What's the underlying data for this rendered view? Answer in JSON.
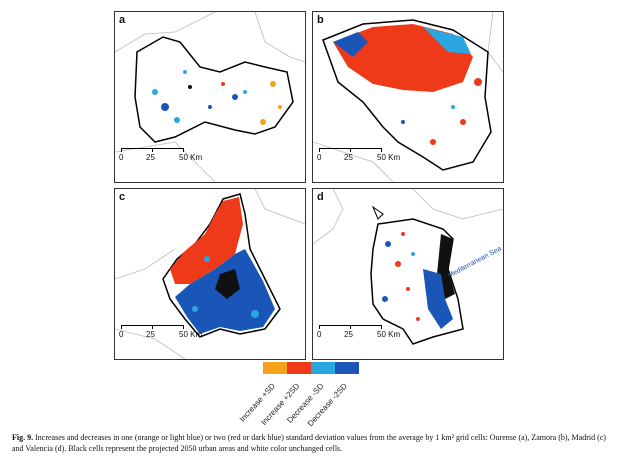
{
  "panels": [
    {
      "id": "a",
      "label": "a",
      "scale": [
        "0",
        "25",
        "50 Km"
      ]
    },
    {
      "id": "b",
      "label": "b",
      "scale": [
        "0",
        "25",
        "50 Km"
      ]
    },
    {
      "id": "c",
      "label": "c",
      "scale": [
        "0",
        "25",
        "50 Km"
      ]
    },
    {
      "id": "d",
      "label": "d",
      "scale": [
        "0",
        "25",
        "50 Km"
      ],
      "annotation": "Mediterranean Sea"
    }
  ],
  "legend": {
    "items": [
      {
        "label": "Increase +SD",
        "color": "#f5a21c"
      },
      {
        "label": "Increase +2SD",
        "color": "#ef3a1a"
      },
      {
        "label": "Decrease -SD",
        "color": "#2aa6e0"
      },
      {
        "label": "Decrease -2SD",
        "color": "#1a56b8"
      }
    ]
  },
  "caption": {
    "fig": "Fig. 9.",
    "text": "Increases and decreases in one (orange or light blue) or two (red or dark blue) standard deviation values from the average by 1 km² grid cells: Ourense (a), Zamora (b), Madrid (c) and Valencia (d). Black cells represent the projected 2050 urban areas and white color unchanged cells."
  },
  "colors": {
    "urban": "#111111",
    "border": "#333333"
  }
}
